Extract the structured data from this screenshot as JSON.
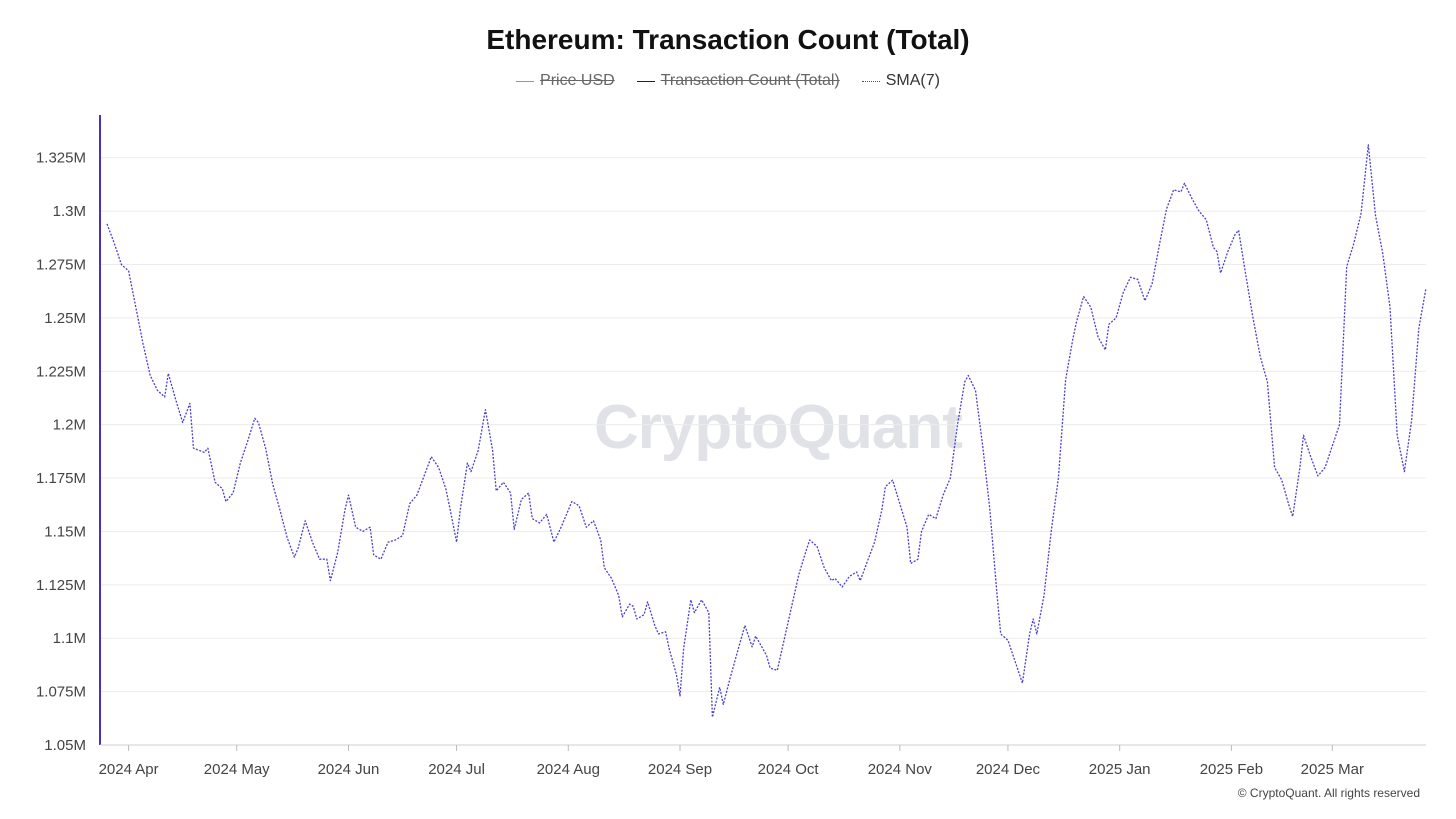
{
  "chart_data": {
    "type": "line",
    "title": "Ethereum: Transaction Count (Total)",
    "legend": [
      {
        "label": "Price USD",
        "color": "#9a9a9a",
        "style": "solid",
        "active": false
      },
      {
        "label": "Transaction Count (Total)",
        "color": "#222222",
        "style": "solid",
        "active": false
      },
      {
        "label": "SMA(7)",
        "color": "#4a3fd0",
        "style": "dotted",
        "active": true
      }
    ],
    "legend_position": "top-center",
    "grid": true,
    "ylim": [
      1050000,
      1345000
    ],
    "y_ticks": [
      {
        "value": 1050000,
        "label": "1.05M"
      },
      {
        "value": 1075000,
        "label": "1.075M"
      },
      {
        "value": 1100000,
        "label": "1.1M"
      },
      {
        "value": 1125000,
        "label": "1.125M"
      },
      {
        "value": 1150000,
        "label": "1.15M"
      },
      {
        "value": 1175000,
        "label": "1.175M"
      },
      {
        "value": 1200000,
        "label": "1.2M"
      },
      {
        "value": 1225000,
        "label": "1.225M"
      },
      {
        "value": 1250000,
        "label": "1.25M"
      },
      {
        "value": 1275000,
        "label": "1.275M"
      },
      {
        "value": 1300000,
        "label": "1.3M"
      },
      {
        "value": 1325000,
        "label": "1.325M"
      }
    ],
    "x_range": [
      "2024-03-26",
      "2025-03-27"
    ],
    "x_ticks": [
      {
        "date": "2024-04-01",
        "label": "2024 Apr"
      },
      {
        "date": "2024-05-01",
        "label": "2024 May"
      },
      {
        "date": "2024-06-01",
        "label": "2024 Jun"
      },
      {
        "date": "2024-07-01",
        "label": "2024 Jul"
      },
      {
        "date": "2024-08-01",
        "label": "2024 Aug"
      },
      {
        "date": "2024-09-01",
        "label": "2024 Sep"
      },
      {
        "date": "2024-10-01",
        "label": "2024 Oct"
      },
      {
        "date": "2024-11-01",
        "label": "2024 Nov"
      },
      {
        "date": "2024-12-01",
        "label": "2024 Dec"
      },
      {
        "date": "2025-01-01",
        "label": "2025 Jan"
      },
      {
        "date": "2025-02-01",
        "label": "2025 Feb"
      },
      {
        "date": "2025-03-01",
        "label": "2025 Mar"
      }
    ],
    "series": [
      {
        "name": "SMA(7)",
        "color": "#4a3fd0",
        "points": [
          [
            "2024-03-26",
            1294000
          ],
          [
            "2024-03-28",
            1285000
          ],
          [
            "2024-03-30",
            1275000
          ],
          [
            "2024-04-01",
            1272000
          ],
          [
            "2024-04-03",
            1255000
          ],
          [
            "2024-04-05",
            1238000
          ],
          [
            "2024-04-07",
            1223000
          ],
          [
            "2024-04-09",
            1216000
          ],
          [
            "2024-04-11",
            1213000
          ],
          [
            "2024-04-12",
            1224000
          ],
          [
            "2024-04-14",
            1212000
          ],
          [
            "2024-04-16",
            1201000
          ],
          [
            "2024-04-18",
            1210000
          ],
          [
            "2024-04-19",
            1189000
          ],
          [
            "2024-04-22",
            1187000
          ],
          [
            "2024-04-23",
            1189000
          ],
          [
            "2024-04-25",
            1173000
          ],
          [
            "2024-04-27",
            1170000
          ],
          [
            "2024-04-28",
            1164000
          ],
          [
            "2024-04-30",
            1168000
          ],
          [
            "2024-05-02",
            1182000
          ],
          [
            "2024-05-04",
            1192000
          ],
          [
            "2024-05-06",
            1203000
          ],
          [
            "2024-05-07",
            1201000
          ],
          [
            "2024-05-09",
            1189000
          ],
          [
            "2024-05-11",
            1172000
          ],
          [
            "2024-05-13",
            1160000
          ],
          [
            "2024-05-15",
            1147000
          ],
          [
            "2024-05-17",
            1138000
          ],
          [
            "2024-05-18",
            1142000
          ],
          [
            "2024-05-20",
            1155000
          ],
          [
            "2024-05-22",
            1145000
          ],
          [
            "2024-05-24",
            1137000
          ],
          [
            "2024-05-26",
            1137000
          ],
          [
            "2024-05-27",
            1127000
          ],
          [
            "2024-05-29",
            1140000
          ],
          [
            "2024-05-31",
            1160000
          ],
          [
            "2024-06-01",
            1167000
          ],
          [
            "2024-06-03",
            1152000
          ],
          [
            "2024-06-05",
            1150000
          ],
          [
            "2024-06-07",
            1152000
          ],
          [
            "2024-06-08",
            1139000
          ],
          [
            "2024-06-10",
            1137000
          ],
          [
            "2024-06-12",
            1145000
          ],
          [
            "2024-06-14",
            1146000
          ],
          [
            "2024-06-16",
            1148000
          ],
          [
            "2024-06-18",
            1163000
          ],
          [
            "2024-06-20",
            1167000
          ],
          [
            "2024-06-22",
            1176000
          ],
          [
            "2024-06-24",
            1185000
          ],
          [
            "2024-06-26",
            1180000
          ],
          [
            "2024-06-28",
            1170000
          ],
          [
            "2024-06-29",
            1162000
          ],
          [
            "2024-07-01",
            1145000
          ],
          [
            "2024-07-02",
            1160000
          ],
          [
            "2024-07-04",
            1182000
          ],
          [
            "2024-07-05",
            1178000
          ],
          [
            "2024-07-07",
            1188000
          ],
          [
            "2024-07-09",
            1207000
          ],
          [
            "2024-07-11",
            1188000
          ],
          [
            "2024-07-12",
            1169000
          ],
          [
            "2024-07-14",
            1173000
          ],
          [
            "2024-07-16",
            1168000
          ],
          [
            "2024-07-17",
            1151000
          ],
          [
            "2024-07-19",
            1165000
          ],
          [
            "2024-07-21",
            1168000
          ],
          [
            "2024-07-22",
            1156000
          ],
          [
            "2024-07-24",
            1154000
          ],
          [
            "2024-07-26",
            1158000
          ],
          [
            "2024-07-28",
            1145000
          ],
          [
            "2024-07-30",
            1152000
          ],
          [
            "2024-08-01",
            1160000
          ],
          [
            "2024-08-02",
            1164000
          ],
          [
            "2024-08-04",
            1162000
          ],
          [
            "2024-08-06",
            1152000
          ],
          [
            "2024-08-08",
            1155000
          ],
          [
            "2024-08-10",
            1146000
          ],
          [
            "2024-08-11",
            1133000
          ],
          [
            "2024-08-13",
            1128000
          ],
          [
            "2024-08-15",
            1120000
          ],
          [
            "2024-08-16",
            1110000
          ],
          [
            "2024-08-18",
            1116000
          ],
          [
            "2024-08-19",
            1115000
          ],
          [
            "2024-08-20",
            1109000
          ],
          [
            "2024-08-22",
            1111000
          ],
          [
            "2024-08-23",
            1117000
          ],
          [
            "2024-08-25",
            1106000
          ],
          [
            "2024-08-26",
            1102000
          ],
          [
            "2024-08-28",
            1103000
          ],
          [
            "2024-08-29",
            1095000
          ],
          [
            "2024-08-31",
            1083000
          ],
          [
            "2024-09-01",
            1073000
          ],
          [
            "2024-09-02",
            1095000
          ],
          [
            "2024-09-04",
            1118000
          ],
          [
            "2024-09-05",
            1112000
          ],
          [
            "2024-09-07",
            1118000
          ],
          [
            "2024-09-09",
            1112000
          ],
          [
            "2024-09-10",
            1063000
          ],
          [
            "2024-09-12",
            1077000
          ],
          [
            "2024-09-13",
            1069000
          ],
          [
            "2024-09-15",
            1082000
          ],
          [
            "2024-09-17",
            1094000
          ],
          [
            "2024-09-19",
            1106000
          ],
          [
            "2024-09-21",
            1096000
          ],
          [
            "2024-09-22",
            1101000
          ],
          [
            "2024-09-23",
            1098000
          ],
          [
            "2024-09-25",
            1092000
          ],
          [
            "2024-09-26",
            1086000
          ],
          [
            "2024-09-28",
            1085000
          ],
          [
            "2024-09-30",
            1100000
          ],
          [
            "2024-10-02",
            1115000
          ],
          [
            "2024-10-04",
            1130000
          ],
          [
            "2024-10-06",
            1141000
          ],
          [
            "2024-10-07",
            1146000
          ],
          [
            "2024-10-09",
            1143000
          ],
          [
            "2024-10-11",
            1133000
          ],
          [
            "2024-10-13",
            1127000
          ],
          [
            "2024-10-14",
            1128000
          ],
          [
            "2024-10-16",
            1124000
          ],
          [
            "2024-10-18",
            1129000
          ],
          [
            "2024-10-20",
            1131000
          ],
          [
            "2024-10-21",
            1127000
          ],
          [
            "2024-10-23",
            1136000
          ],
          [
            "2024-10-25",
            1145000
          ],
          [
            "2024-10-27",
            1160000
          ],
          [
            "2024-10-28",
            1171000
          ],
          [
            "2024-10-30",
            1174000
          ],
          [
            "2024-11-01",
            1163000
          ],
          [
            "2024-11-03",
            1152000
          ],
          [
            "2024-11-04",
            1135000
          ],
          [
            "2024-11-06",
            1137000
          ],
          [
            "2024-11-07",
            1150000
          ],
          [
            "2024-11-09",
            1158000
          ],
          [
            "2024-11-11",
            1156000
          ],
          [
            "2024-11-13",
            1167000
          ],
          [
            "2024-11-15",
            1175000
          ],
          [
            "2024-11-17",
            1200000
          ],
          [
            "2024-11-19",
            1220000
          ],
          [
            "2024-11-20",
            1223000
          ],
          [
            "2024-11-22",
            1216000
          ],
          [
            "2024-11-24",
            1190000
          ],
          [
            "2024-11-26",
            1160000
          ],
          [
            "2024-11-28",
            1120000
          ],
          [
            "2024-11-29",
            1102000
          ],
          [
            "2024-12-01",
            1099000
          ],
          [
            "2024-12-03",
            1089000
          ],
          [
            "2024-12-05",
            1079000
          ],
          [
            "2024-12-07",
            1102000
          ],
          [
            "2024-12-08",
            1109000
          ],
          [
            "2024-12-09",
            1102000
          ],
          [
            "2024-12-11",
            1120000
          ],
          [
            "2024-12-13",
            1150000
          ],
          [
            "2024-12-15",
            1175000
          ],
          [
            "2024-12-17",
            1221000
          ],
          [
            "2024-12-19",
            1240000
          ],
          [
            "2024-12-20",
            1248000
          ],
          [
            "2024-12-22",
            1260000
          ],
          [
            "2024-12-24",
            1255000
          ],
          [
            "2024-12-26",
            1241000
          ],
          [
            "2024-12-28",
            1235000
          ],
          [
            "2024-12-29",
            1247000
          ],
          [
            "2024-12-31",
            1250000
          ],
          [
            "2025-01-02",
            1262000
          ],
          [
            "2025-01-04",
            1269000
          ],
          [
            "2025-01-06",
            1268000
          ],
          [
            "2025-01-08",
            1258000
          ],
          [
            "2025-01-10",
            1266000
          ],
          [
            "2025-01-12",
            1284000
          ],
          [
            "2025-01-14",
            1301000
          ],
          [
            "2025-01-16",
            1310000
          ],
          [
            "2025-01-18",
            1309000
          ],
          [
            "2025-01-19",
            1313000
          ],
          [
            "2025-01-21",
            1306000
          ],
          [
            "2025-01-23",
            1300000
          ],
          [
            "2025-01-25",
            1296000
          ],
          [
            "2025-01-27",
            1283000
          ],
          [
            "2025-01-28",
            1281000
          ],
          [
            "2025-01-29",
            1271000
          ],
          [
            "2025-01-31",
            1281000
          ],
          [
            "2025-02-02",
            1289000
          ],
          [
            "2025-02-03",
            1291000
          ],
          [
            "2025-02-05",
            1270000
          ],
          [
            "2025-02-07",
            1250000
          ],
          [
            "2025-02-09",
            1232000
          ],
          [
            "2025-02-11",
            1220000
          ],
          [
            "2025-02-13",
            1180000
          ],
          [
            "2025-02-15",
            1174000
          ],
          [
            "2025-02-17",
            1162000
          ],
          [
            "2025-02-18",
            1157000
          ],
          [
            "2025-02-20",
            1180000
          ],
          [
            "2025-02-21",
            1195000
          ],
          [
            "2025-02-23",
            1185000
          ],
          [
            "2025-02-25",
            1176000
          ],
          [
            "2025-02-27",
            1180000
          ],
          [
            "2025-03-01",
            1190000
          ],
          [
            "2025-03-03",
            1200000
          ],
          [
            "2025-03-05",
            1274000
          ],
          [
            "2025-03-07",
            1285000
          ],
          [
            "2025-03-09",
            1299000
          ],
          [
            "2025-03-11",
            1331000
          ],
          [
            "2025-03-13",
            1298000
          ],
          [
            "2025-03-15",
            1280000
          ],
          [
            "2025-03-17",
            1255000
          ],
          [
            "2025-03-19",
            1195000
          ],
          [
            "2025-03-21",
            1178000
          ],
          [
            "2025-03-23",
            1202000
          ],
          [
            "2025-03-25",
            1245000
          ],
          [
            "2025-03-27",
            1264000
          ]
        ]
      }
    ],
    "watermark": "CryptoQuant",
    "copyright": "© CryptoQuant. All rights reserved"
  }
}
